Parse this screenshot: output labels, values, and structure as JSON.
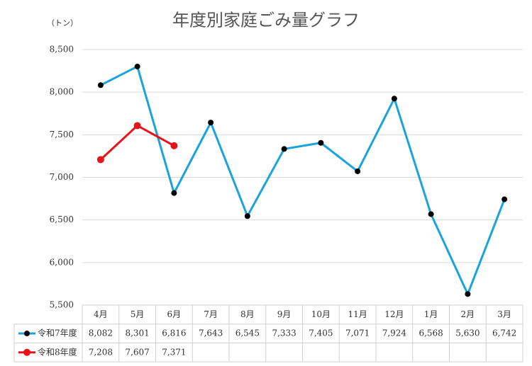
{
  "chart_data": {
    "type": "line",
    "title": "年度別家庭ごみ量グラフ",
    "y_label": "（トン）",
    "categories": [
      "4月",
      "5月",
      "6月",
      "7月",
      "8月",
      "9月",
      "10月",
      "11月",
      "12月",
      "1月",
      "2月",
      "3月"
    ],
    "series": [
      {
        "name": "令和7年度",
        "color": "#1aa3dc",
        "marker_color": "#000000",
        "values": [
          8082,
          8301,
          6816,
          7643,
          6545,
          7333,
          7405,
          7071,
          7924,
          6568,
          5630,
          6742
        ],
        "value_labels": [
          "8,082",
          "8,301",
          "6,816",
          "7,643",
          "6,545",
          "7,333",
          "7,405",
          "7,071",
          "7,924",
          "6,568",
          "5,630",
          "6,742"
        ]
      },
      {
        "name": "令和8年度",
        "color": "#e8141b",
        "marker_color": "#e8141b",
        "values": [
          7208,
          7607,
          7371,
          null,
          null,
          null,
          null,
          null,
          null,
          null,
          null,
          null
        ],
        "value_labels": [
          "7,208",
          "7,607",
          "7,371",
          null,
          null,
          null,
          null,
          null,
          null,
          null,
          null,
          null
        ]
      }
    ],
    "ylim": [
      5500,
      8500
    ],
    "yticks": [
      {
        "value": 5500,
        "label": "5,500"
      },
      {
        "value": 6000,
        "label": "6,000"
      },
      {
        "value": 6500,
        "label": "6,500"
      },
      {
        "value": 7000,
        "label": "7,000"
      },
      {
        "value": 7500,
        "label": "7,500"
      },
      {
        "value": 8000,
        "label": "8,000"
      },
      {
        "value": 8500,
        "label": "8,500"
      }
    ],
    "grid": true
  }
}
